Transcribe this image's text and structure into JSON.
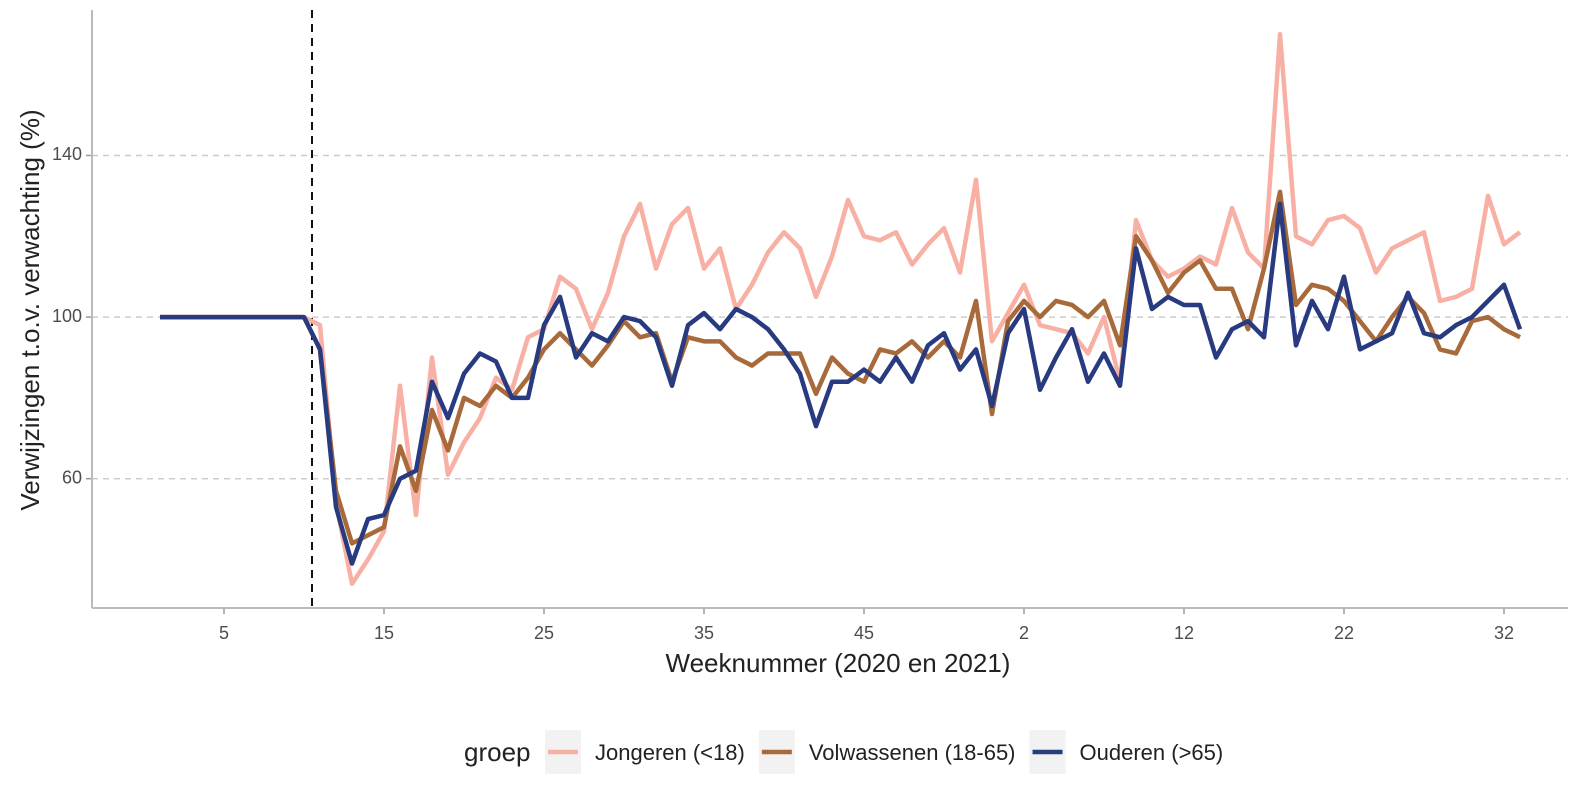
{
  "chart_data": {
    "type": "line",
    "x_label": "Weeknummer (2020 en 2021)",
    "y_label": "Verwijzingen t.o.v. verwachting (%)",
    "legend_title": "groep",
    "legend_position": "bottom",
    "grid": true,
    "vline_x": 10.5,
    "x": [
      1,
      2,
      3,
      4,
      5,
      6,
      7,
      8,
      9,
      10,
      11,
      12,
      13,
      14,
      15,
      16,
      17,
      18,
      19,
      20,
      21,
      22,
      23,
      24,
      25,
      26,
      27,
      28,
      29,
      30,
      31,
      32,
      33,
      34,
      35,
      36,
      37,
      38,
      39,
      40,
      41,
      42,
      43,
      44,
      45,
      46,
      47,
      48,
      49,
      50,
      51,
      52,
      53,
      54,
      55,
      56,
      57,
      58,
      59,
      60,
      61,
      62,
      63,
      64,
      65,
      66,
      67,
      68,
      69,
      70,
      71,
      72,
      73,
      74,
      75,
      76,
      77,
      78,
      79,
      80,
      81,
      82,
      83,
      84,
      85,
      86
    ],
    "xlim": [
      -3.25,
      89
    ],
    "xticks": [
      5,
      15,
      25,
      35,
      45,
      {
        "value": 55,
        "label": "2"
      },
      {
        "value": 65,
        "label": "12"
      },
      {
        "value": 75,
        "label": "22"
      },
      {
        "value": 85,
        "label": "32"
      }
    ],
    "ylim": [
      28,
      176
    ],
    "yticks": [
      60,
      100,
      140
    ],
    "series": [
      {
        "name": "Jongeren (<18)",
        "color": "#f8b0a4",
        "values": [
          100,
          100,
          100,
          100,
          100,
          100,
          100,
          100,
          100,
          100,
          98,
          54,
          34,
          40,
          47,
          83,
          51,
          90,
          61,
          69,
          75,
          85,
          82,
          95,
          97,
          110,
          107,
          97,
          106,
          120,
          128,
          112,
          123,
          127,
          112,
          117,
          102,
          108,
          116,
          121,
          117,
          105,
          115,
          129,
          120,
          119,
          121,
          113,
          118,
          122,
          111,
          134,
          94,
          101,
          108,
          98,
          97,
          96,
          91,
          100,
          84,
          124,
          114,
          110,
          112,
          115,
          113,
          127,
          116,
          112,
          170,
          120,
          118,
          124,
          125,
          122,
          111,
          117,
          119,
          121,
          104,
          105,
          107,
          130,
          118,
          121
        ]
      },
      {
        "name": "Volwassenen (18-65)",
        "color": "#a86a3a",
        "values": [
          100,
          100,
          100,
          100,
          100,
          100,
          100,
          100,
          100,
          100,
          92,
          57,
          44,
          46,
          48,
          68,
          57,
          77,
          67,
          80,
          78,
          83,
          80,
          85,
          92,
          96,
          92,
          88,
          93,
          99,
          95,
          96,
          84,
          95,
          94,
          94,
          90,
          88,
          91,
          91,
          91,
          81,
          90,
          86,
          84,
          92,
          91,
          94,
          90,
          94,
          90,
          104,
          76,
          99,
          104,
          100,
          104,
          103,
          100,
          104,
          93,
          120,
          114,
          106,
          111,
          114,
          107,
          107,
          97,
          112,
          131,
          103,
          108,
          107,
          104,
          99,
          94,
          100,
          105,
          101,
          92,
          91,
          99,
          100,
          97,
          95
        ]
      },
      {
        "name": "Ouderen (>65)",
        "color": "#283a80",
        "values": [
          100,
          100,
          100,
          100,
          100,
          100,
          100,
          100,
          100,
          100,
          92,
          53,
          39,
          50,
          51,
          60,
          62,
          84,
          75,
          86,
          91,
          89,
          80,
          80,
          98,
          105,
          90,
          96,
          94,
          100,
          99,
          95,
          83,
          98,
          101,
          97,
          102,
          100,
          97,
          92,
          86,
          73,
          84,
          84,
          87,
          84,
          90,
          84,
          93,
          96,
          87,
          92,
          78,
          96,
          102,
          82,
          90,
          97,
          84,
          91,
          83,
          117,
          102,
          105,
          103,
          103,
          90,
          97,
          99,
          95,
          128,
          93,
          104,
          97,
          110,
          92,
          94,
          96,
          106,
          96,
          95,
          98,
          100,
          104,
          108,
          97
        ]
      }
    ]
  }
}
